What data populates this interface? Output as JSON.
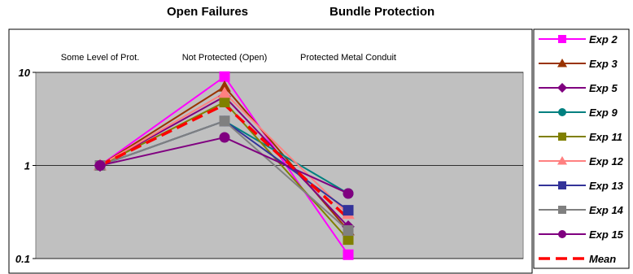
{
  "titles": {
    "left": "Open Failures",
    "right": "Bundle Protection"
  },
  "chart_data": {
    "type": "line",
    "yscale": "log",
    "ylim": [
      0.1,
      10
    ],
    "yticks": [
      {
        "value": 10,
        "label": "10"
      },
      {
        "value": 1,
        "label": "1"
      },
      {
        "value": 0.1,
        "label": "0.1"
      }
    ],
    "categories": [
      "Some Level of Prot.",
      "Not Protected (Open)",
      "Protected Metal Conduit"
    ],
    "plot_background": "#c0c0c0",
    "grid": true,
    "legend_position": "right",
    "series": [
      {
        "name": "Exp 2",
        "color": "#ff00ff",
        "marker": "square",
        "dashed": false,
        "values": [
          1,
          9.0,
          0.11
        ]
      },
      {
        "name": "Exp 3",
        "color": "#993300",
        "marker": "triangle",
        "dashed": false,
        "values": [
          1,
          7.0,
          0.2
        ]
      },
      {
        "name": "Exp 5",
        "color": "#800080",
        "marker": "diamond",
        "dashed": false,
        "values": [
          1,
          5.5,
          0.22
        ]
      },
      {
        "name": "Exp 9",
        "color": "#008080",
        "marker": "circle",
        "dashed": false,
        "values": [
          1,
          3.0,
          0.5
        ]
      },
      {
        "name": "Exp 11",
        "color": "#808000",
        "marker": "square",
        "dashed": false,
        "values": [
          1,
          4.8,
          0.16
        ]
      },
      {
        "name": "Exp 12",
        "color": "#ff8080",
        "marker": "triangle",
        "dashed": false,
        "values": [
          1,
          6.0,
          0.3
        ]
      },
      {
        "name": "Exp 13",
        "color": "#333399",
        "marker": "square",
        "dashed": false,
        "values": [
          1,
          3.0,
          0.33
        ]
      },
      {
        "name": "Exp 14",
        "color": "#808080",
        "marker": "square",
        "dashed": false,
        "values": [
          1,
          3.0,
          0.2
        ]
      },
      {
        "name": "Exp 15",
        "color": "#800080",
        "marker": "circle",
        "dashed": false,
        "values": [
          1,
          2.0,
          0.5
        ]
      },
      {
        "name": "Mean",
        "color": "#ff0000",
        "marker": "none",
        "dashed": true,
        "values": [
          1,
          4.5,
          0.27
        ]
      }
    ]
  }
}
